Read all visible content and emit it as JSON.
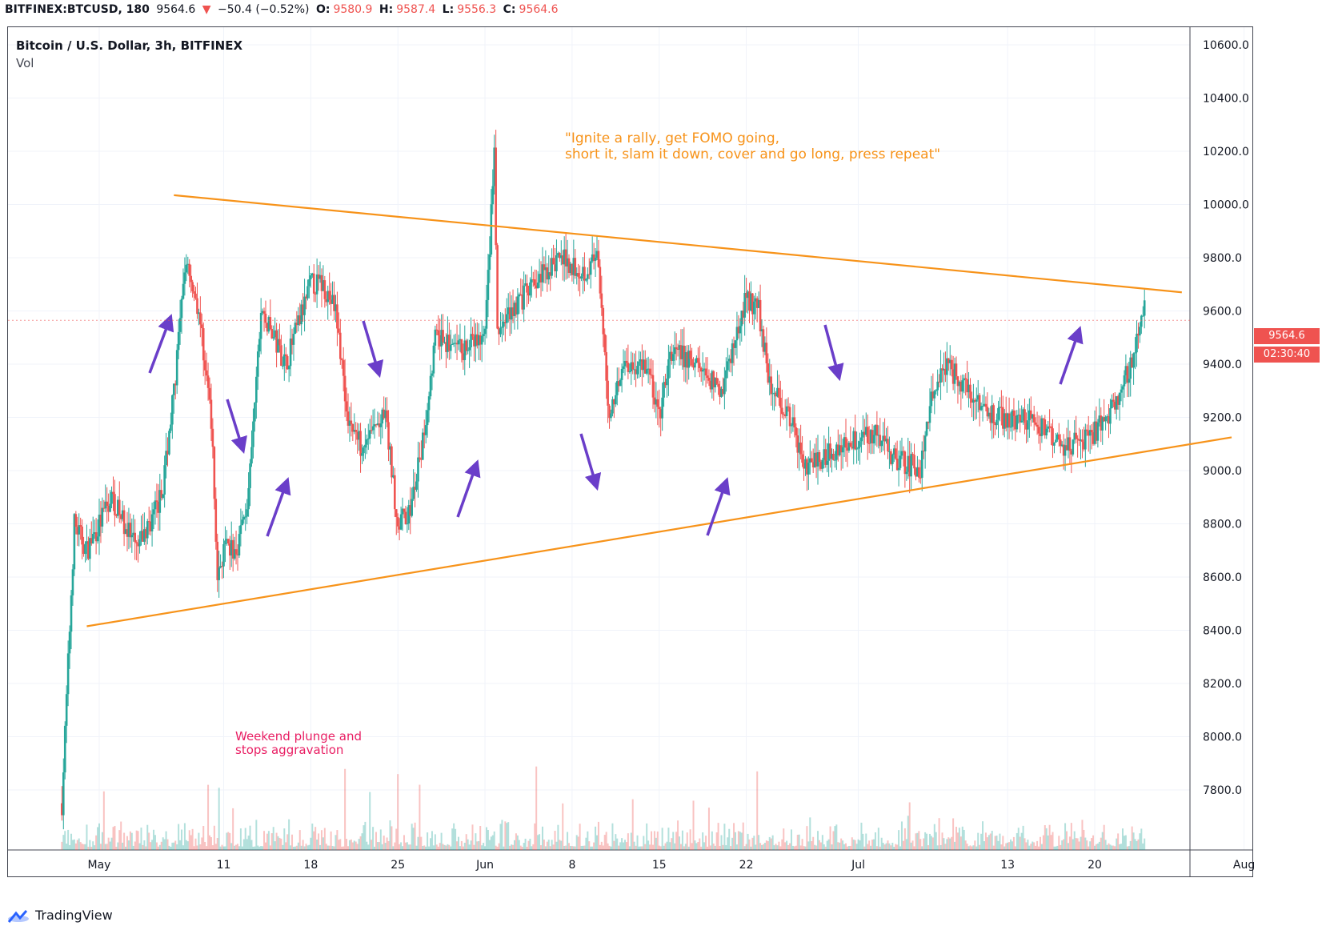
{
  "header": {
    "symbol": "BITFINEX:BTCUSD, 180",
    "last": "9564.6",
    "change_arrow": "▼",
    "change": "−50.4 (−0.52%)",
    "o_label": "O:",
    "o_value": "9580.9",
    "h_label": "H:",
    "h_value": "9587.4",
    "l_label": "L:",
    "l_value": "9556.3",
    "c_label": "C:",
    "c_value": "9564.6"
  },
  "legend": {
    "title": "Bitcoin / U.S. Dollar, 3h, BITFINEX",
    "vol": "Vol"
  },
  "annotations": {
    "rally_line1": "\"Ignite a rally, get FOMO going,",
    "rally_line2": "short it, slam it down, cover and go long, press repeat\"",
    "weekend_line1": "Weekend plunge and",
    "weekend_line2": "stops aggravation"
  },
  "price_tag": {
    "price": "9564.6",
    "countdown": "02:30:40"
  },
  "logo": {
    "text": "TradingView",
    "icon": "tradingview-cloud-icon"
  },
  "colors": {
    "up": "#26a69a",
    "down": "#ef5350",
    "trendline": "#f7931a",
    "arrow": "#6a3ec9",
    "tag": "#ef5350"
  },
  "chart_data": {
    "type": "candlestick",
    "title": "Bitcoin / U.S. Dollar, 3h, BITFINEX",
    "ylim": [
      7700,
      10650
    ],
    "y_ticks": [
      "10600.0",
      "10400.0",
      "10200.0",
      "10000.0",
      "9800.0",
      "9600.0",
      "9400.0",
      "9200.0",
      "9000.0",
      "8800.0",
      "8600.0",
      "8400.0",
      "8200.0",
      "8000.0",
      "7800.0"
    ],
    "x_ticks": [
      "May",
      "11",
      "18",
      "25",
      "Jun",
      "8",
      "15",
      "22",
      "Jul",
      "13",
      "20",
      "Aug"
    ],
    "x_tick_dates": [
      "2020-05-01",
      "2020-05-11",
      "2020-05-18",
      "2020-05-25",
      "2020-06-01",
      "2020-06-08",
      "2020-06-15",
      "2020-06-22",
      "2020-07-01",
      "2020-07-13",
      "2020-07-20",
      "2020-08-01"
    ],
    "x_range": [
      "2020-04-22",
      "2020-08-01"
    ],
    "close_path": {
      "dates": [
        "2020-04-28",
        "2020-04-29",
        "2020-04-30",
        "2020-05-02",
        "2020-05-04",
        "2020-05-06",
        "2020-05-07",
        "2020-05-08",
        "2020-05-09",
        "2020-05-10",
        "2020-05-10T12",
        "2020-05-11",
        "2020-05-12",
        "2020-05-13",
        "2020-05-14",
        "2020-05-16",
        "2020-05-18",
        "2020-05-19",
        "2020-05-20",
        "2020-05-21",
        "2020-05-22",
        "2020-05-24",
        "2020-05-25",
        "2020-05-26",
        "2020-05-27",
        "2020-05-28",
        "2020-05-30",
        "2020-06-01",
        "2020-06-01T18",
        "2020-06-02",
        "2020-06-03",
        "2020-06-05",
        "2020-06-07",
        "2020-06-09",
        "2020-06-10",
        "2020-06-11",
        "2020-06-12",
        "2020-06-14",
        "2020-06-15",
        "2020-06-16",
        "2020-06-18",
        "2020-06-20",
        "2020-06-22",
        "2020-06-23",
        "2020-06-24",
        "2020-06-25",
        "2020-06-27",
        "2020-06-28",
        "2020-06-30",
        "2020-07-02",
        "2020-07-04",
        "2020-07-06",
        "2020-07-07",
        "2020-07-08",
        "2020-07-10",
        "2020-07-12",
        "2020-07-14",
        "2020-07-16",
        "2020-07-17",
        "2020-07-19",
        "2020-07-21",
        "2020-07-22",
        "2020-07-23",
        "2020-07-24"
      ],
      "close": [
        7750,
        8800,
        8700,
        8900,
        8700,
        8900,
        9300,
        9800,
        9600,
        9200,
        8600,
        8700,
        8700,
        8900,
        9600,
        9400,
        9700,
        9700,
        9600,
        9200,
        9100,
        9200,
        8800,
        8850,
        9100,
        9500,
        9450,
        9500,
        10200,
        9500,
        9600,
        9700,
        9800,
        9750,
        9800,
        9200,
        9400,
        9400,
        9200,
        9450,
        9400,
        9300,
        9650,
        9600,
        9300,
        9250,
        9000,
        9050,
        9100,
        9150,
        9050,
        9000,
        9300,
        9400,
        9300,
        9200,
        9200,
        9150,
        9100,
        9100,
        9200,
        9300,
        9400,
        9600
      ]
    },
    "volume_note": "Vol"
  }
}
